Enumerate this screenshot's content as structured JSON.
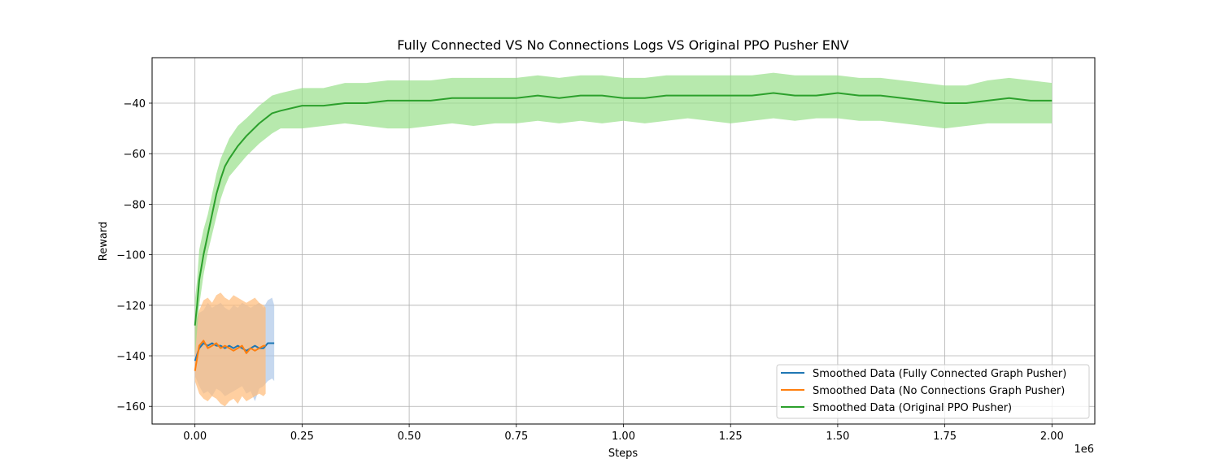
{
  "chart_data": {
    "type": "line",
    "title": "Fully Connected VS No Connections Logs VS Original PPO Pusher ENV",
    "xlabel": "Steps",
    "ylabel": "Reward",
    "x_offset_label": "1e6",
    "xlim": [
      -0.1,
      2.1
    ],
    "ylim": [
      -167,
      -22
    ],
    "xticks": [
      0.0,
      0.25,
      0.5,
      0.75,
      1.0,
      1.25,
      1.5,
      1.75,
      2.0
    ],
    "xtick_labels": [
      "0.00",
      "0.25",
      "0.50",
      "0.75",
      "1.00",
      "1.25",
      "1.50",
      "1.75",
      "2.00"
    ],
    "yticks": [
      -160,
      -140,
      -120,
      -100,
      -80,
      -60,
      -40
    ],
    "ytick_labels": [
      "−160",
      "−140",
      "−120",
      "−100",
      "−80",
      "−60",
      "−40"
    ],
    "grid": true,
    "legend_position": "lower-right",
    "series": [
      {
        "name": "Smoothed Data (Fully Connected Graph Pusher)",
        "color": "#1f77b4",
        "band_color": "#aec7e8",
        "x": [
          0.0,
          0.01,
          0.02,
          0.03,
          0.04,
          0.05,
          0.06,
          0.07,
          0.08,
          0.09,
          0.1,
          0.11,
          0.12,
          0.13,
          0.14,
          0.15,
          0.16,
          0.17,
          0.18,
          0.185
        ],
        "y": [
          -142,
          -137,
          -135,
          -136,
          -135,
          -136,
          -136,
          -137,
          -136,
          -137,
          -136,
          -137,
          -138,
          -137,
          -136,
          -137,
          -137,
          -135,
          -135,
          -135
        ],
        "band_lower": [
          -148,
          -152,
          -155,
          -154,
          -156,
          -153,
          -154,
          -156,
          -155,
          -154,
          -153,
          -152,
          -155,
          -154,
          -158,
          -153,
          -152,
          -150,
          -149,
          -150
        ],
        "band_upper": [
          -128,
          -123,
          -122,
          -119,
          -121,
          -120,
          -119,
          -121,
          -122,
          -120,
          -121,
          -119,
          -120,
          -121,
          -120,
          -119,
          -121,
          -118,
          -117,
          -120
        ]
      },
      {
        "name": "Smoothed Data (No Connections Graph Pusher)",
        "color": "#ff7f0e",
        "band_color": "#ffbb78",
        "x": [
          0.0,
          0.01,
          0.02,
          0.03,
          0.04,
          0.05,
          0.06,
          0.07,
          0.08,
          0.09,
          0.1,
          0.11,
          0.12,
          0.13,
          0.14,
          0.15,
          0.16,
          0.165
        ],
        "y": [
          -146,
          -136,
          -134,
          -137,
          -136,
          -135,
          -137,
          -136,
          -137,
          -138,
          -137,
          -136,
          -139,
          -137,
          -138,
          -137,
          -136,
          -136
        ],
        "band_lower": [
          -150,
          -155,
          -157,
          -158,
          -156,
          -157,
          -159,
          -160,
          -158,
          -157,
          -159,
          -156,
          -158,
          -157,
          -156,
          -155,
          -156,
          -155
        ],
        "band_upper": [
          -128,
          -122,
          -118,
          -117,
          -119,
          -116,
          -115,
          -117,
          -118,
          -116,
          -117,
          -118,
          -119,
          -118,
          -117,
          -119,
          -120,
          -121
        ]
      },
      {
        "name": "Smoothed Data (Original PPO Pusher)",
        "color": "#2ca02c",
        "band_color": "#98df8a",
        "x": [
          0.0,
          0.005,
          0.01,
          0.02,
          0.03,
          0.04,
          0.05,
          0.06,
          0.07,
          0.08,
          0.1,
          0.12,
          0.15,
          0.18,
          0.2,
          0.25,
          0.3,
          0.35,
          0.4,
          0.45,
          0.5,
          0.55,
          0.6,
          0.65,
          0.7,
          0.75,
          0.8,
          0.85,
          0.9,
          0.95,
          1.0,
          1.05,
          1.1,
          1.15,
          1.2,
          1.25,
          1.3,
          1.35,
          1.4,
          1.45,
          1.5,
          1.55,
          1.6,
          1.65,
          1.7,
          1.75,
          1.8,
          1.85,
          1.9,
          1.95,
          2.0
        ],
        "y": [
          -128,
          -120,
          -110,
          -100,
          -92,
          -84,
          -76,
          -70,
          -65,
          -62,
          -57,
          -53,
          -48,
          -44,
          -43,
          -41,
          -41,
          -40,
          -40,
          -39,
          -39,
          -39,
          -38,
          -38,
          -38,
          -38,
          -37,
          -38,
          -37,
          -37,
          -38,
          -38,
          -37,
          -37,
          -37,
          -37,
          -37,
          -36,
          -37,
          -37,
          -36,
          -37,
          -37,
          -38,
          -39,
          -40,
          -40,
          -39,
          -38,
          -39,
          -39
        ],
        "band_lower": [
          -140,
          -130,
          -120,
          -108,
          -99,
          -92,
          -85,
          -78,
          -73,
          -69,
          -65,
          -61,
          -56,
          -52,
          -50,
          -50,
          -49,
          -48,
          -49,
          -50,
          -50,
          -49,
          -48,
          -49,
          -48,
          -48,
          -47,
          -48,
          -47,
          -48,
          -47,
          -48,
          -47,
          -46,
          -47,
          -48,
          -47,
          -46,
          -47,
          -46,
          -46,
          -47,
          -47,
          -48,
          -49,
          -50,
          -49,
          -48,
          -48,
          -48,
          -48
        ],
        "band_upper": [
          -118,
          -110,
          -98,
          -90,
          -84,
          -76,
          -68,
          -62,
          -58,
          -54,
          -49,
          -46,
          -41,
          -37,
          -36,
          -34,
          -34,
          -32,
          -32,
          -31,
          -31,
          -31,
          -30,
          -30,
          -30,
          -30,
          -29,
          -30,
          -29,
          -29,
          -30,
          -30,
          -29,
          -29,
          -29,
          -29,
          -29,
          -28,
          -29,
          -29,
          -29,
          -30,
          -30,
          -31,
          -32,
          -33,
          -33,
          -31,
          -30,
          -31,
          -32
        ]
      }
    ]
  }
}
